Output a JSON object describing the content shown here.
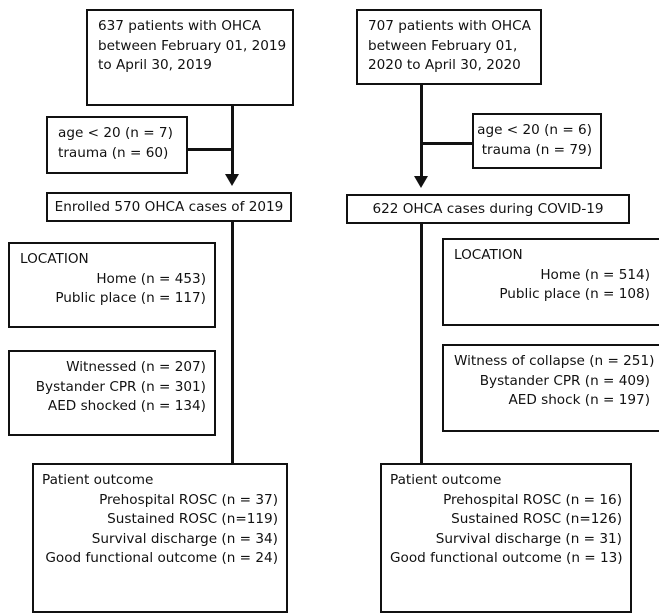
{
  "left": {
    "header": [
      "637 patients with OHCA",
      "between February 01, 2019",
      "to April 30, 2019"
    ],
    "exclusion": [
      "age < 20 (n = 7)",
      "trauma (n = 60)"
    ],
    "enrolled": "Enrolled 570 OHCA cases of 2019",
    "location_title": "LOCATION",
    "location": [
      "Home (n = 453)",
      "Public place (n = 117)"
    ],
    "resuscitation": [
      "Witnessed (n = 207)",
      "Bystander CPR (n = 301)",
      "AED shocked (n = 134)"
    ],
    "outcome_title": "Patient outcome",
    "outcome": [
      "Prehospital ROSC (n = 37)",
      "Sustained ROSC (n=119)",
      "Survival discharge (n = 34)",
      "Good functional outcome (n = 24)"
    ]
  },
  "right": {
    "header": [
      "707 patients with OHCA",
      "between February 01,",
      "2020 to April 30, 2020"
    ],
    "exclusion": [
      "age < 20 (n = 6)",
      "trauma (n = 79)"
    ],
    "enrolled": "622 OHCA cases during COVID-19",
    "location_title": "LOCATION",
    "location": [
      "Home (n = 514)",
      "Public place (n = 108)"
    ],
    "resuscitation": [
      "Witness of collapse (n = 251)",
      "Bystander CPR (n = 409)",
      "AED shock (n = 197)"
    ],
    "outcome_title": "Patient outcome",
    "outcome": [
      "Prehospital ROSC (n = 16)",
      "Sustained ROSC (n=126)",
      "Survival discharge (n = 31)",
      "Good functional outcome (n = 13)"
    ]
  }
}
